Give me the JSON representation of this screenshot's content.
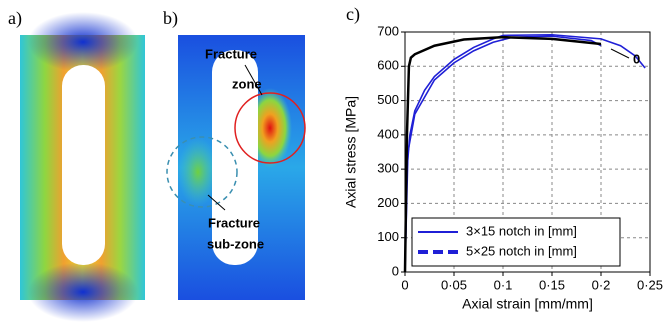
{
  "panels": {
    "a": {
      "label": "a)"
    },
    "b": {
      "label": "b)",
      "annotations": [
        "Fracture",
        "zone",
        "Fracture",
        "sub-zone"
      ]
    }
  },
  "chart_data": {
    "type": "line",
    "panel_label": "c)",
    "x_label": "Axial strain [mm/mm]",
    "y_label": "Axial stress [MPa]",
    "xlim": [
      0,
      0.25
    ],
    "ylim": [
      0,
      700
    ],
    "xticks": [
      0,
      {
        "value": 0.05,
        "label": "0·05"
      },
      {
        "value": 0.1,
        "label": "0·1"
      },
      {
        "value": 0.15,
        "label": "0·15"
      },
      {
        "value": 0.2,
        "label": "0·2"
      },
      {
        "value": 0.25,
        "label": "0·25"
      }
    ],
    "yticks": [
      0,
      100,
      200,
      300,
      400,
      500,
      600,
      700
    ],
    "grid": true,
    "legend_position": "lower-right",
    "series": [
      {
        "name": "3×15 notch in [mm]",
        "color": "#1f1fd6",
        "legend": true,
        "dashed": false,
        "x": [
          0,
          0.002,
          0.005,
          0.01,
          0.02,
          0.03,
          0.05,
          0.07,
          0.09,
          0.1,
          0.15,
          0.2,
          0.22,
          0.235,
          0.245
        ],
        "values": [
          0,
          300,
          400,
          470,
          530,
          570,
          620,
          655,
          680,
          690,
          692,
          680,
          660,
          630,
          595
        ]
      },
      {
        "name": "5×25 notch in [mm]",
        "color": "#1f1fd6",
        "legend": true,
        "dashed": true,
        "x": [
          0,
          0.003,
          0.01,
          0.03,
          0.05,
          0.07,
          0.09,
          0.11,
          0.15,
          0.19,
          0.2
        ],
        "values": [
          0,
          350,
          460,
          560,
          610,
          645,
          670,
          685,
          688,
          675,
          660
        ]
      },
      {
        "name": "0",
        "color": "#000000",
        "legend": false,
        "dashed": false,
        "x": [
          0,
          0.002,
          0.004,
          0.006,
          0.01,
          0.03,
          0.06,
          0.1,
          0.15,
          0.2
        ],
        "values": [
          0,
          400,
          600,
          625,
          635,
          660,
          678,
          685,
          680,
          665
        ]
      }
    ]
  }
}
